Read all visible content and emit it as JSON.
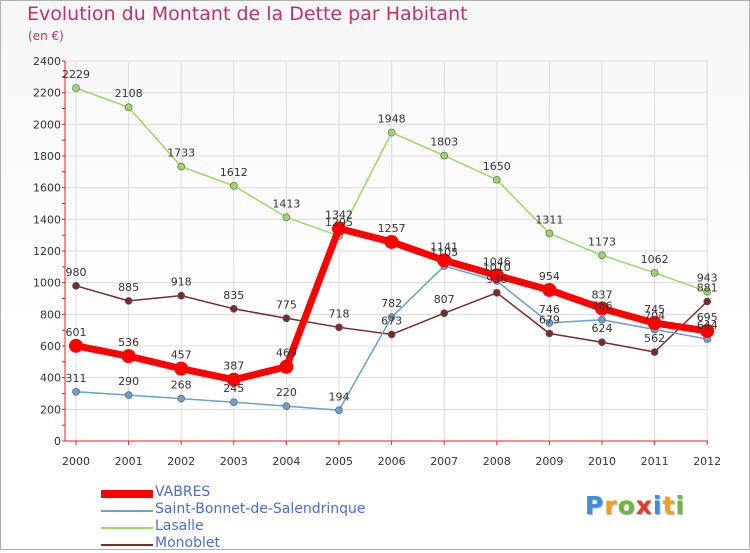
{
  "header": {
    "title": "Evolution du Montant de la Dette par Habitant",
    "subtitle": "(en €)"
  },
  "logo": {
    "text": "Proxiti",
    "colors": [
      "#3a8fd8",
      "#f0a020",
      "#6cb83a",
      "#e03a2a",
      "#3a8fd8",
      "#f0a020",
      "#6cb83a"
    ]
  },
  "colors": {
    "title": "#c0306e",
    "axis": "#e0202a",
    "grid": "#dcdcdc",
    "legend_text": "#4a6bd8"
  },
  "chart_data": {
    "type": "line",
    "title": "Evolution du Montant de la Dette par Habitant",
    "subtitle": "(en €)",
    "xlabel": "",
    "ylabel": "",
    "ylim": [
      0,
      2400
    ],
    "yticks": [
      0,
      200,
      400,
      600,
      800,
      1000,
      1200,
      1400,
      1600,
      1800,
      2000,
      2200,
      2400
    ],
    "grid": true,
    "legend_position": "bottom-left",
    "x": [
      "2000",
      "2001",
      "2002",
      "2003",
      "2004",
      "2005",
      "2006",
      "2007",
      "2008",
      "2009",
      "2010",
      "2011",
      "2012"
    ],
    "series": [
      {
        "name": "VABRES",
        "color": "#ff0000",
        "values": [
          601,
          536,
          457,
          387,
          469,
          1342,
          1257,
          1141,
          1046,
          954,
          837,
          745,
          695
        ]
      },
      {
        "name": "Saint-Bonnet-de-Salendrinque",
        "color": "#6aa0cc",
        "values": [
          311,
          290,
          268,
          245,
          220,
          194,
          782,
          1105,
          1010,
          746,
          766,
          704,
          644
        ]
      },
      {
        "name": "Lasalle",
        "color": "#9ad868",
        "values": [
          2229,
          2108,
          1733,
          1612,
          1413,
          1295,
          1948,
          1803,
          1650,
          1311,
          1173,
          1062,
          943
        ]
      },
      {
        "name": "Monoblet",
        "color": "#7a2a2a",
        "values": [
          980,
          885,
          918,
          835,
          775,
          718,
          673,
          807,
          936,
          679,
          624,
          562,
          881
        ]
      }
    ]
  }
}
